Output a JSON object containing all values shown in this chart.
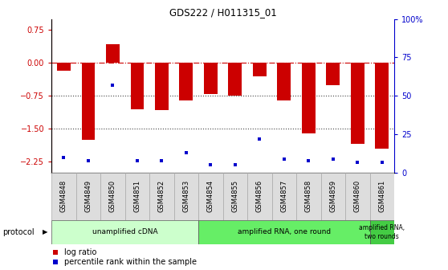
{
  "title": "GDS222 / H011315_01",
  "samples": [
    "GSM4848",
    "GSM4849",
    "GSM4850",
    "GSM4851",
    "GSM4852",
    "GSM4853",
    "GSM4854",
    "GSM4855",
    "GSM4856",
    "GSM4857",
    "GSM4858",
    "GSM4859",
    "GSM4860",
    "GSM4861"
  ],
  "log_ratio": [
    -0.18,
    -1.75,
    0.42,
    -1.05,
    -1.08,
    -0.85,
    -0.7,
    -0.75,
    -0.3,
    -0.85,
    -1.6,
    -0.5,
    -1.85,
    -1.95
  ],
  "percentile": [
    10,
    8,
    57,
    8,
    8,
    13,
    5,
    5,
    22,
    9,
    8,
    9,
    7,
    7
  ],
  "bar_color": "#cc0000",
  "dot_color": "#0000cc",
  "ylim_left": [
    -2.5,
    1.0
  ],
  "ylim_right": [
    0,
    100
  ],
  "yticks_left": [
    0.75,
    0.0,
    -0.75,
    -1.5,
    -2.25
  ],
  "yticks_right": [
    100,
    75,
    50,
    25,
    0
  ],
  "hline_y": 0,
  "dotted_lines": [
    -0.75,
    -1.5
  ],
  "protocols": [
    {
      "label": "unamplified cDNA",
      "start": 0,
      "end": 5,
      "color": "#ccffcc"
    },
    {
      "label": "amplified RNA, one round",
      "start": 6,
      "end": 12,
      "color": "#66ee66"
    },
    {
      "label": "amplified RNA,\ntwo rounds",
      "start": 13,
      "end": 13,
      "color": "#44cc44"
    }
  ],
  "protocol_label": "protocol",
  "legend1_label": "log ratio",
  "legend2_label": "percentile rank within the sample",
  "bar_width": 0.55,
  "grid_dotted_color": "#444444",
  "hline_color": "#cc0000",
  "bg_color": "#ffffff",
  "cell_color": "#dddddd"
}
